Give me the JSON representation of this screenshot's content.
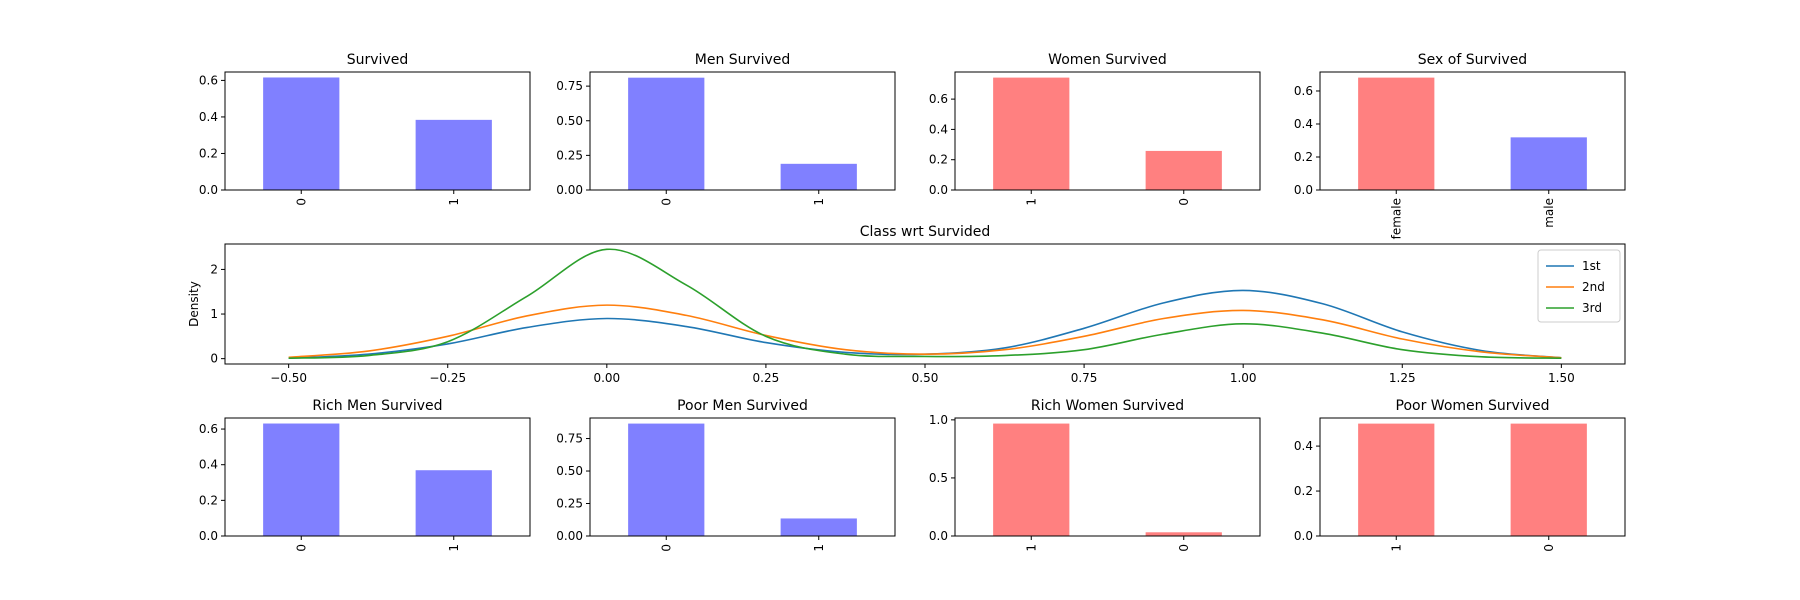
{
  "chart_data": [
    {
      "type": "bar",
      "title": "Survived",
      "categories": [
        "0",
        "1"
      ],
      "values": [
        0.616,
        0.384
      ],
      "color": "#8080ff",
      "ylim": [
        0,
        0.646
      ],
      "yticks": [
        0.0,
        0.2,
        0.4,
        0.6
      ],
      "ytick_labels": [
        "0.0",
        "0.2",
        "0.4",
        "0.6"
      ]
    },
    {
      "type": "bar",
      "title": "Men Survived",
      "categories": [
        "0",
        "1"
      ],
      "values": [
        0.811,
        0.189
      ],
      "color": "#8080ff",
      "ylim": [
        0,
        0.852
      ],
      "yticks": [
        0.0,
        0.25,
        0.5,
        0.75
      ],
      "ytick_labels": [
        "0.00",
        "0.25",
        "0.50",
        "0.75"
      ]
    },
    {
      "type": "bar",
      "title": "Women Survived",
      "categories": [
        "1",
        "0"
      ],
      "values": [
        0.742,
        0.258
      ],
      "color": "#ff8080",
      "ylim": [
        0,
        0.779
      ],
      "yticks": [
        0.0,
        0.2,
        0.4,
        0.6
      ],
      "ytick_labels": [
        "0.0",
        "0.2",
        "0.4",
        "0.6"
      ]
    },
    {
      "type": "bar",
      "title": "Sex of Survived",
      "categories": [
        "female",
        "male"
      ],
      "values": [
        0.681,
        0.319
      ],
      "colors": [
        "#ff8080",
        "#8080ff"
      ],
      "ylim": [
        0,
        0.715
      ],
      "yticks": [
        0.0,
        0.2,
        0.4,
        0.6
      ],
      "ytick_labels": [
        "0.0",
        "0.2",
        "0.4",
        "0.6"
      ]
    },
    {
      "type": "line",
      "title": "Class wrt Survided",
      "ylabel": "Density",
      "xlim": [
        -0.6,
        1.6
      ],
      "ylim": [
        -0.12,
        2.57
      ],
      "xticks": [
        -0.5,
        -0.25,
        0.0,
        0.25,
        0.5,
        0.75,
        1.0,
        1.25,
        1.5
      ],
      "xtick_labels": [
        "−0.50",
        "−0.25",
        "0.00",
        "0.25",
        "0.50",
        "0.75",
        "1.00",
        "1.25",
        "1.50"
      ],
      "yticks": [
        0,
        1,
        2
      ],
      "ytick_labels": [
        "0",
        "1",
        "2"
      ],
      "legend": "top-right",
      "series": [
        {
          "name": "1st",
          "color": "#1f77b4",
          "x": [
            -0.5,
            -0.375,
            -0.25,
            -0.125,
            0.0,
            0.125,
            0.25,
            0.375,
            0.5,
            0.625,
            0.75,
            0.875,
            1.0,
            1.125,
            1.25,
            1.375,
            1.5
          ],
          "y": [
            0.01,
            0.1,
            0.33,
            0.7,
            0.9,
            0.72,
            0.36,
            0.14,
            0.1,
            0.24,
            0.68,
            1.25,
            1.53,
            1.23,
            0.6,
            0.18,
            0.02
          ]
        },
        {
          "name": "2nd",
          "color": "#ff7f0e",
          "x": [
            -0.5,
            -0.375,
            -0.25,
            -0.125,
            0.0,
            0.125,
            0.25,
            0.375,
            0.5,
            0.625,
            0.75,
            0.875,
            1.0,
            1.125,
            1.25,
            1.375,
            1.5
          ],
          "y": [
            0.03,
            0.17,
            0.5,
            0.96,
            1.2,
            0.97,
            0.52,
            0.2,
            0.1,
            0.2,
            0.5,
            0.9,
            1.08,
            0.87,
            0.44,
            0.15,
            0.02
          ]
        },
        {
          "name": "3rd",
          "color": "#2ca02c",
          "x": [
            -0.5,
            -0.375,
            -0.25,
            -0.125,
            0.0,
            0.125,
            0.25,
            0.375,
            0.5,
            0.625,
            0.75,
            0.875,
            1.0,
            1.125,
            1.25,
            1.375,
            1.5
          ],
          "y": [
            0.01,
            0.07,
            0.38,
            1.4,
            2.45,
            1.65,
            0.5,
            0.1,
            0.05,
            0.07,
            0.2,
            0.55,
            0.78,
            0.57,
            0.2,
            0.04,
            0.01
          ]
        }
      ]
    },
    {
      "type": "bar",
      "title": "Rich Men Survived",
      "categories": [
        "0",
        "1"
      ],
      "values": [
        0.631,
        0.369
      ],
      "color": "#8080ff",
      "ylim": [
        0,
        0.662
      ],
      "yticks": [
        0.0,
        0.2,
        0.4,
        0.6
      ],
      "ytick_labels": [
        "0.0",
        "0.2",
        "0.4",
        "0.6"
      ]
    },
    {
      "type": "bar",
      "title": "Poor Men Survived",
      "categories": [
        "0",
        "1"
      ],
      "values": [
        0.865,
        0.135
      ],
      "color": "#8080ff",
      "ylim": [
        0,
        0.908
      ],
      "yticks": [
        0.0,
        0.25,
        0.5,
        0.75
      ],
      "ytick_labels": [
        "0.00",
        "0.25",
        "0.50",
        "0.75"
      ]
    },
    {
      "type": "bar",
      "title": "Rich Women Survived",
      "categories": [
        "1",
        "0"
      ],
      "values": [
        0.968,
        0.032
      ],
      "color": "#ff8080",
      "ylim": [
        0,
        1.016
      ],
      "yticks": [
        0.0,
        0.5,
        1.0
      ],
      "ytick_labels": [
        "0.0",
        "0.5",
        "1.0"
      ]
    },
    {
      "type": "bar",
      "title": "Poor Women Survived",
      "categories": [
        "1",
        "0"
      ],
      "values": [
        0.5,
        0.5
      ],
      "color": "#ff8080",
      "ylim": [
        0,
        0.525
      ],
      "yticks": [
        0.0,
        0.2,
        0.4
      ],
      "ytick_labels": [
        "0.0",
        "0.2",
        "0.4"
      ]
    }
  ]
}
